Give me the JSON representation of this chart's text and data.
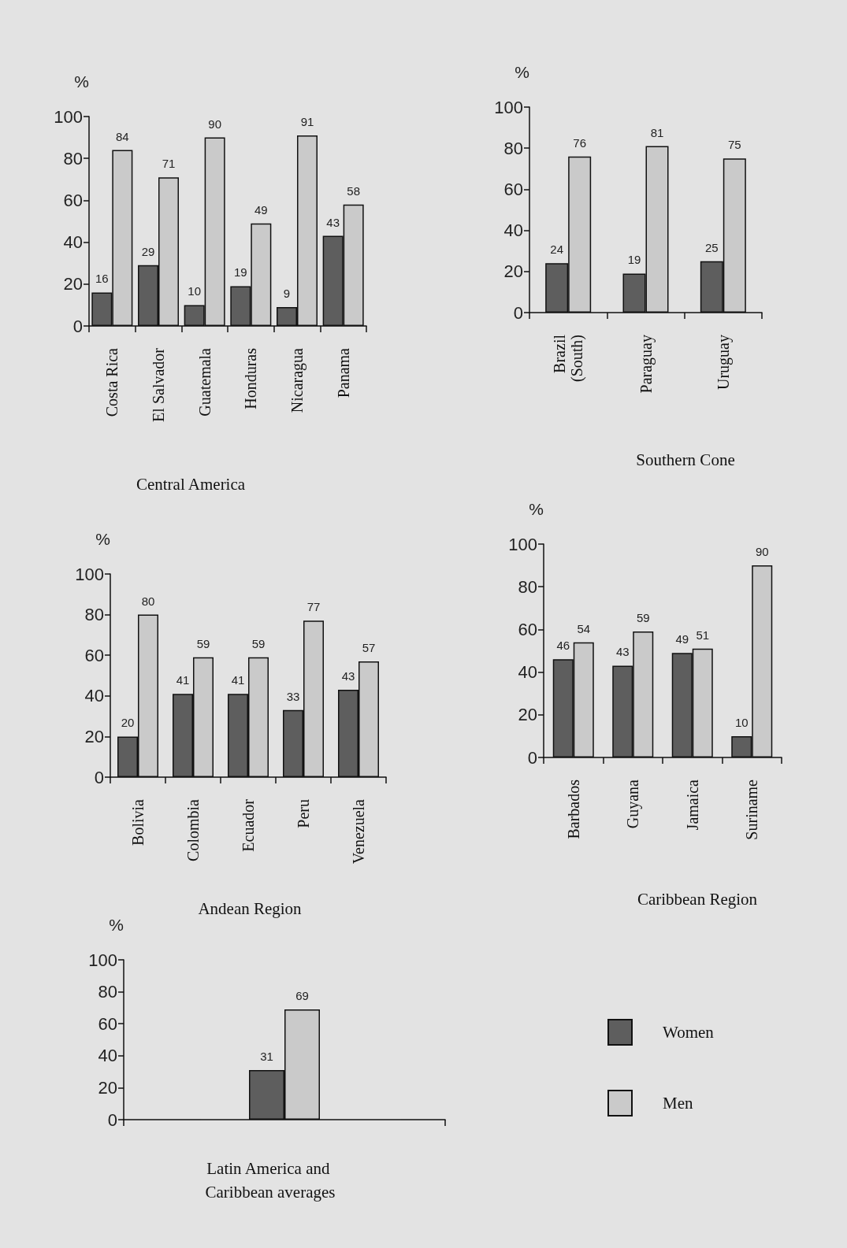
{
  "chart_data": [
    {
      "type": "bar",
      "title": "Central America",
      "ylabel": "%",
      "categories": [
        "Costa Rica",
        "El Salvador",
        "Guatemala",
        "Honduras",
        "Nicaragua",
        "Panama"
      ],
      "series": [
        {
          "color": "#5e5e5e",
          "values": [
            16,
            29,
            10,
            19,
            9,
            43
          ]
        },
        {
          "color": "#cacaca",
          "values": [
            84,
            71,
            90,
            49,
            91,
            58
          ]
        }
      ],
      "ylim": [
        0,
        100
      ],
      "yticks": [
        0,
        20,
        40,
        60,
        80,
        100
      ],
      "data_labels": true
    },
    {
      "type": "bar",
      "title": "Southern Cone",
      "ylabel": "%",
      "categories": [
        "Brazil (South)",
        "Paraguay",
        "Uruguay"
      ],
      "series": [
        {
          "color": "#5e5e5e",
          "values": [
            24,
            19,
            25
          ]
        },
        {
          "color": "#cacaca",
          "values": [
            76,
            81,
            75
          ]
        }
      ],
      "ylim": [
        0,
        100
      ],
      "yticks": [
        0,
        20,
        40,
        60,
        80,
        100
      ],
      "data_labels": true
    },
    {
      "type": "bar",
      "title": "Andean Region",
      "ylabel": "%",
      "categories": [
        "Bolivia",
        "Colombia",
        "Ecuador",
        "Peru",
        "Venezuela"
      ],
      "series": [
        {
          "color": "#5e5e5e",
          "values": [
            20,
            41,
            41,
            33,
            43
          ]
        },
        {
          "color": "#cacaca",
          "values": [
            80,
            59,
            59,
            77,
            57
          ]
        }
      ],
      "ylim": [
        0,
        100
      ],
      "yticks": [
        0,
        20,
        40,
        60,
        80,
        100
      ],
      "data_labels": true
    },
    {
      "type": "bar",
      "title": "Caribbean Region",
      "ylabel": "%",
      "categories": [
        "Barbados",
        "Guyana",
        "Jamaica",
        "Suriname"
      ],
      "series": [
        {
          "color": "#5e5e5e",
          "values": [
            46,
            43,
            49,
            10
          ]
        },
        {
          "color": "#cacaca",
          "values": [
            54,
            59,
            51,
            90
          ]
        }
      ],
      "ylim": [
        0,
        100
      ],
      "yticks": [
        0,
        20,
        40,
        60,
        80,
        100
      ],
      "data_labels": true
    },
    {
      "type": "bar",
      "title": "Latin America and Caribbean averages",
      "ylabel": "%",
      "categories": [
        null
      ],
      "series": [
        {
          "name": "Women",
          "color": "#5e5e5e",
          "values": [
            31
          ]
        },
        {
          "name": "Men",
          "color": "#cacaca",
          "values": [
            69
          ]
        }
      ],
      "ylim": [
        0,
        100
      ],
      "yticks": [
        0,
        20,
        40,
        60,
        80,
        100
      ],
      "data_labels": true,
      "legend": "right"
    }
  ]
}
